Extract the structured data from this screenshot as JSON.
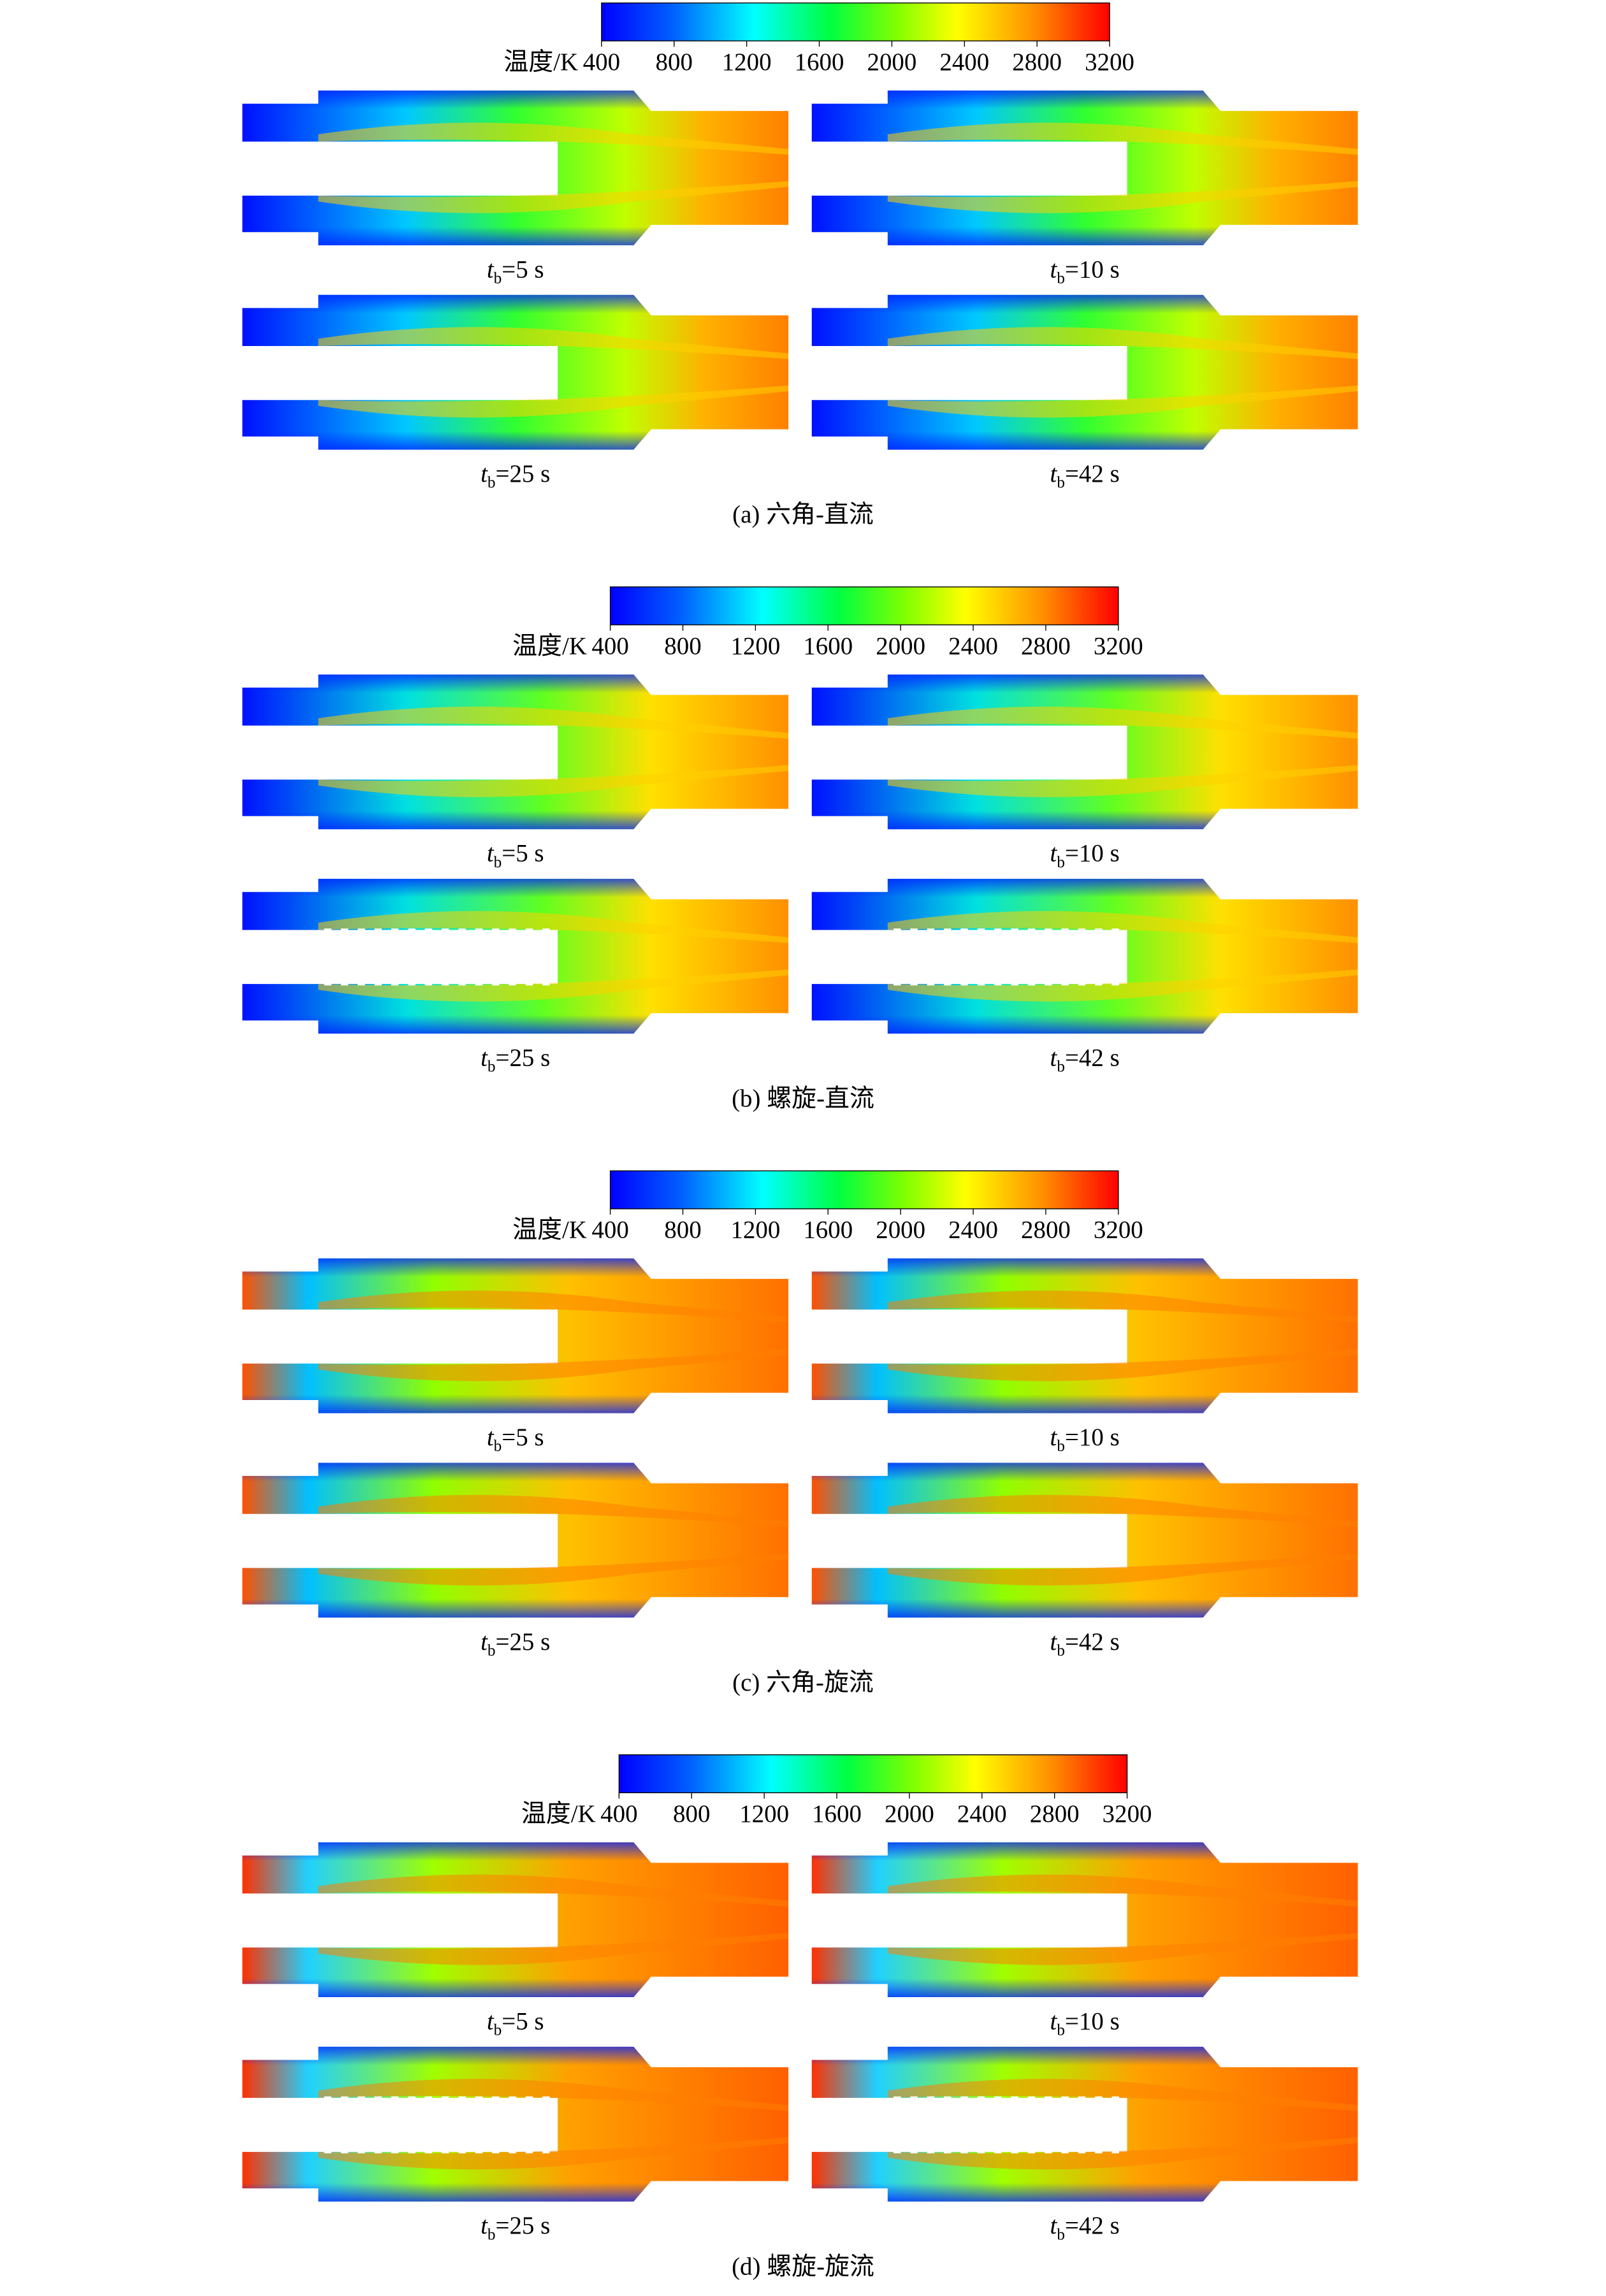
{
  "panels": [
    {
      "colorbar": {
        "label": "温度/K",
        "ticks": [
          400,
          800,
          1200,
          1600,
          2000,
          2400,
          2800,
          3200
        ]
      },
      "plots": [
        {
          "symbol": "t",
          "subscript": "b",
          "text": "=5 s"
        },
        {
          "symbol": "t",
          "subscript": "b",
          "text": "=10 s"
        },
        {
          "symbol": "t",
          "subscript": "b",
          "text": "=25 s"
        },
        {
          "symbol": "t",
          "subscript": "b",
          "text": "=42 s"
        }
      ],
      "caption": "(a) 六角-直流"
    },
    {
      "colorbar": {
        "label": "温度/K",
        "ticks": [
          400,
          800,
          1200,
          1600,
          2000,
          2400,
          2800,
          3200
        ]
      },
      "plots": [
        {
          "symbol": "t",
          "subscript": "b",
          "text": "=5 s"
        },
        {
          "symbol": "t",
          "subscript": "b",
          "text": "=10 s"
        },
        {
          "symbol": "t",
          "subscript": "b",
          "text": "=25 s"
        },
        {
          "symbol": "t",
          "subscript": "b",
          "text": "=42 s"
        }
      ],
      "caption": "(b) 螺旋-直流"
    },
    {
      "colorbar": {
        "label": "温度/K",
        "ticks": [
          400,
          800,
          1200,
          1600,
          2000,
          2400,
          2800,
          3200
        ]
      },
      "plots": [
        {
          "symbol": "t",
          "subscript": "b",
          "text": "=5 s"
        },
        {
          "symbol": "t",
          "subscript": "b",
          "text": "=10 s"
        },
        {
          "symbol": "t",
          "subscript": "b",
          "text": "=25 s"
        },
        {
          "symbol": "t",
          "subscript": "b",
          "text": "=42 s"
        }
      ],
      "caption": "(c) 六角-旋流"
    },
    {
      "colorbar": {
        "label": "温度/K",
        "ticks": [
          400,
          800,
          1200,
          1600,
          2000,
          2400,
          2800,
          3200
        ]
      },
      "plots": [
        {
          "symbol": "t",
          "subscript": "b",
          "text": "=5 s"
        },
        {
          "symbol": "t",
          "subscript": "b",
          "text": "=10 s"
        },
        {
          "symbol": "t",
          "subscript": "b",
          "text": "=25 s"
        },
        {
          "symbol": "t",
          "subscript": "b",
          "text": "=42 s"
        }
      ],
      "caption": "(d) 螺旋-旋流"
    }
  ]
}
